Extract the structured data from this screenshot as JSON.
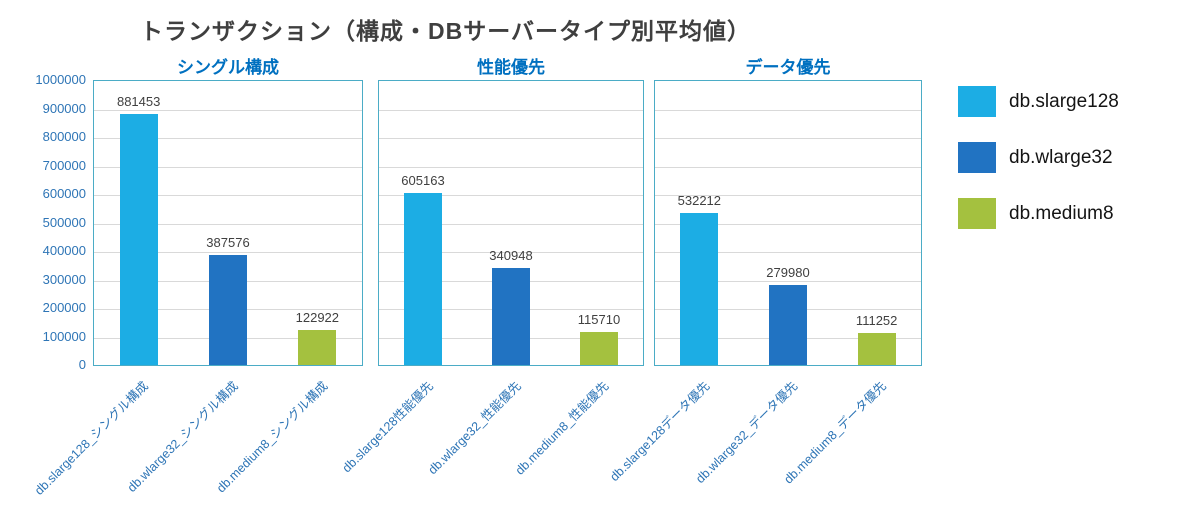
{
  "title": "トランザクション（構成・DBサーバータイプ別平均値）",
  "chart_data": {
    "type": "bar",
    "title": "トランザクション（構成・DBサーバータイプ別平均値）",
    "ylim": [
      0,
      1000000
    ],
    "ytick_step": 100000,
    "grid": true,
    "legend_position": "right",
    "legend": [
      "db.slarge128",
      "db.wlarge32",
      "db.medium8"
    ],
    "series_colors": [
      "#1CADE4",
      "#2173C2",
      "#A4C13F"
    ],
    "panel_border_color": "#4BACC6",
    "axis_label_color": "#2E75B6",
    "panel_title_color": "#0070C0",
    "panels": [
      {
        "title": "シングル構成",
        "categories": [
          "db.slarge128_シングル構成",
          "db.wlarge32_シングル構成",
          "db.medium8_シングル構成"
        ],
        "values": [
          881453,
          387576,
          122922
        ]
      },
      {
        "title": "性能優先",
        "categories": [
          "db.slarge128性能優先",
          "db.wlarge32_性能優先",
          "db.medium8_性能優先"
        ],
        "values": [
          605163,
          340948,
          115710
        ]
      },
      {
        "title": "データ優先",
        "categories": [
          "db.slarge128データ優先",
          "db.wlarge32_データ優先",
          "db.medium8_データ優先"
        ],
        "values": [
          532212,
          279980,
          111252
        ]
      }
    ]
  }
}
